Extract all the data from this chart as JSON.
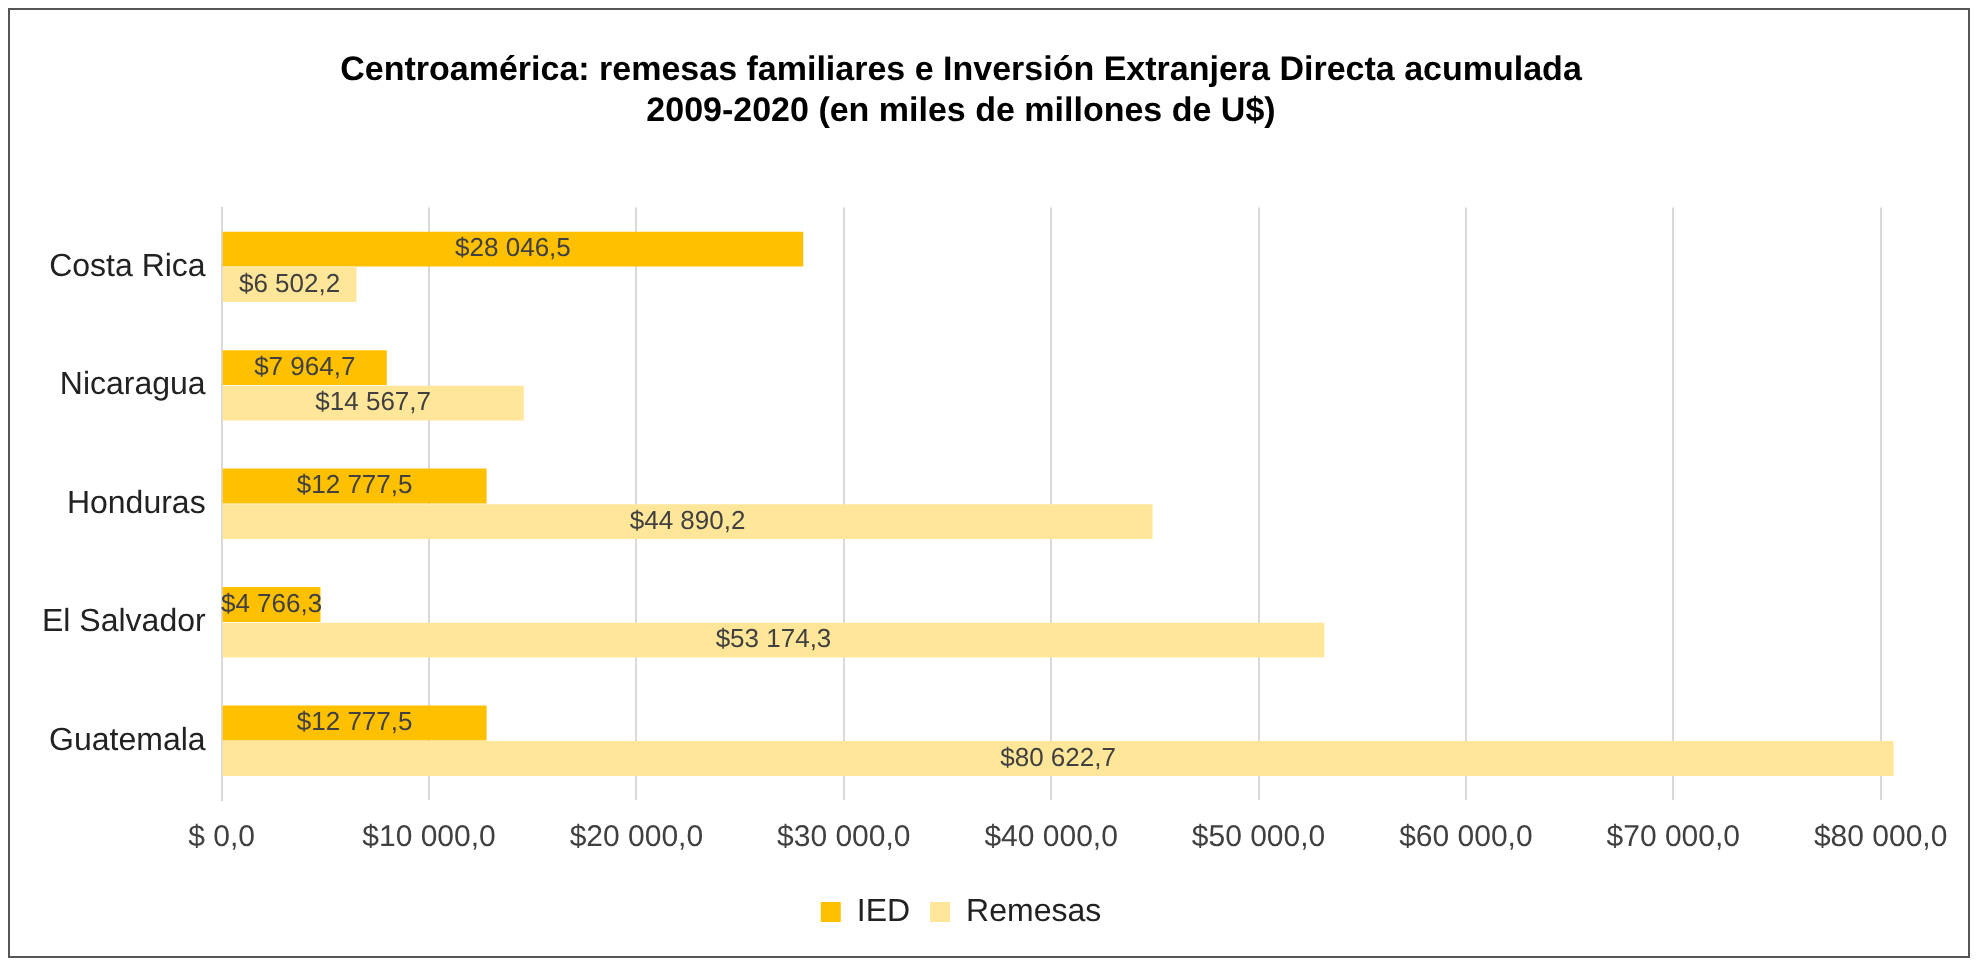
{
  "chart_data": {
    "type": "bar",
    "orientation": "horizontal",
    "title": "Centroamérica: remesas familiares e Inversión Extranjera Directa acumulada\n2009-2020 (en miles de millones de U$)",
    "categories": [
      "Costa Rica",
      "Nicaragua",
      "Honduras",
      "El Salvador",
      "Guatemala"
    ],
    "series": [
      {
        "name": "IED",
        "color": "#ffc000",
        "values": [
          28046.5,
          7964.7,
          12777.5,
          4766.3,
          12777.5
        ],
        "value_labels": [
          "$28 046,5",
          "$7 964,7",
          "$12 777,5",
          "$4 766,3",
          "$12 777,5"
        ]
      },
      {
        "name": "Remesas",
        "color": "#ffe699",
        "values": [
          6502.2,
          14567.7,
          44890.2,
          53174.3,
          80622.7
        ],
        "value_labels": [
          "$6 502,2",
          "$14 567,7",
          "$44 890,2",
          "$53 174,3",
          "$80 622,7"
        ]
      }
    ],
    "xlim": [
      0,
      80700
    ],
    "xticks": [
      {
        "value": 0,
        "label": "$ 0,0"
      },
      {
        "value": 10000,
        "label": "$10 000,0"
      },
      {
        "value": 20000,
        "label": "$20 000,0"
      },
      {
        "value": 30000,
        "label": "$30 000,0"
      },
      {
        "value": 40000,
        "label": "$40 000,0"
      },
      {
        "value": 50000,
        "label": "$50 000,0"
      },
      {
        "value": 60000,
        "label": "$60 000,0"
      },
      {
        "value": 70000,
        "label": "$70 000,0"
      },
      {
        "value": 80000,
        "label": "$80 000,0"
      }
    ],
    "grid": "x",
    "legend": "bottom"
  }
}
